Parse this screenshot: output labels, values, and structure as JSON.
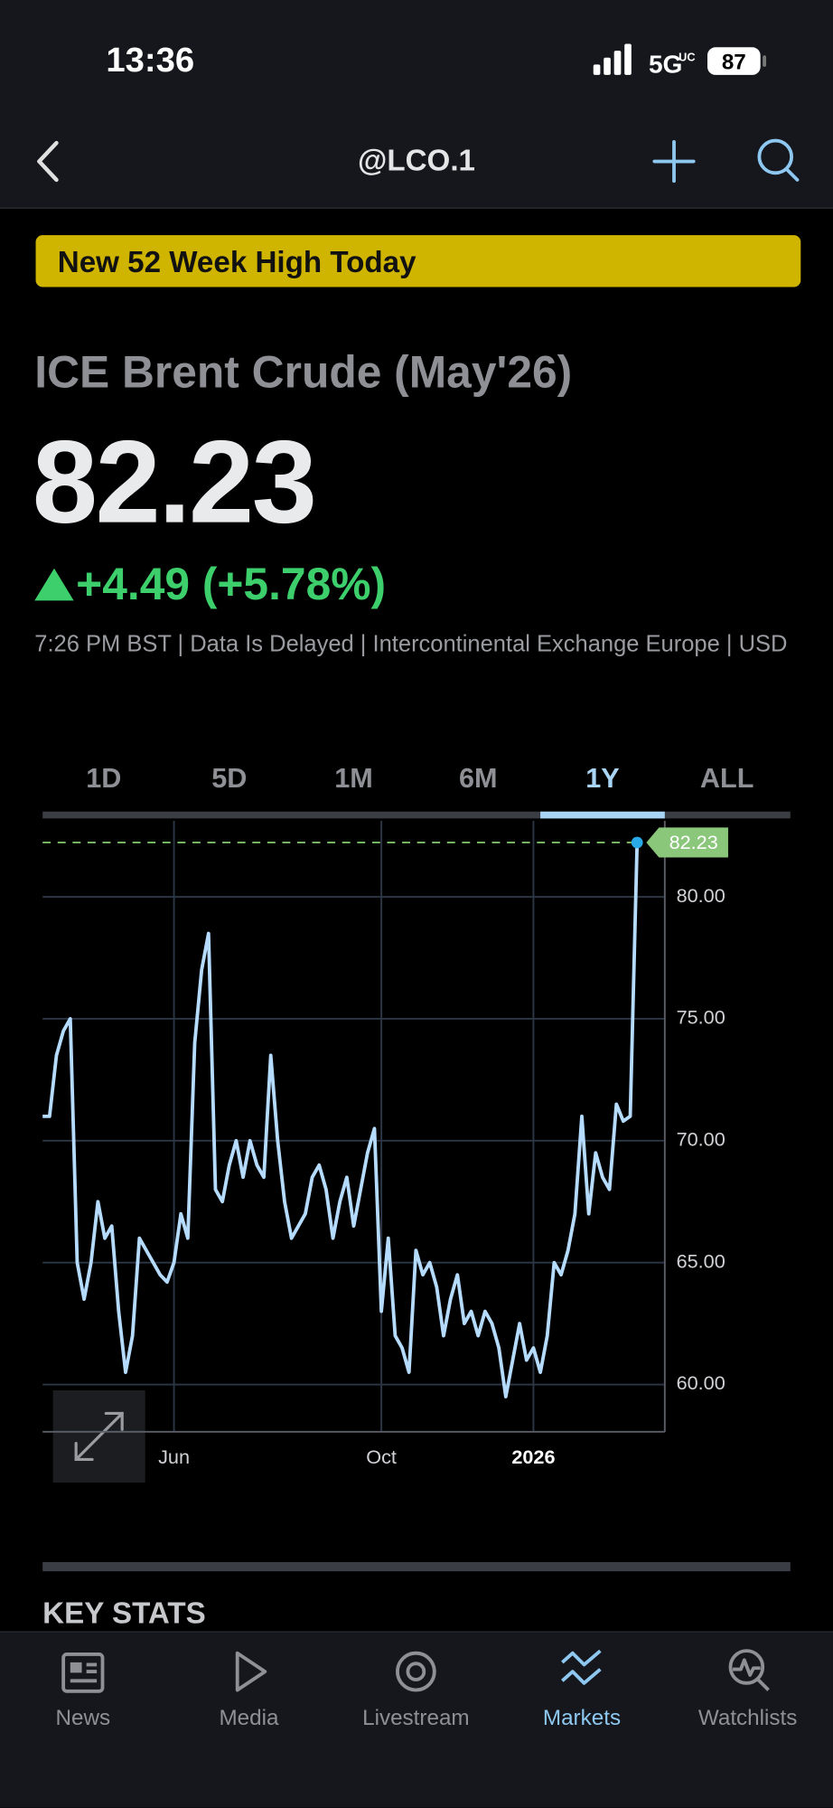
{
  "status_bar": {
    "time": "13:36",
    "network": "5G",
    "network_sub": "UC",
    "battery": "87"
  },
  "header": {
    "title": "@LCO.1"
  },
  "banner": "New 52 Week High Today",
  "quote": {
    "name": "ICE Brent Crude (May'26)",
    "price": "82.23",
    "change": "+4.49 (+5.78%)",
    "info": "7:26 PM BST | Data Is Delayed | Intercontinental Exchange Europe | USD"
  },
  "tabs": {
    "items": [
      "1D",
      "5D",
      "1M",
      "6M",
      "1Y",
      "ALL"
    ],
    "active": "1Y"
  },
  "chart_data": {
    "type": "line",
    "color": "#b5dcff",
    "categories": [
      null,
      null,
      null,
      null,
      null,
      null,
      null,
      null,
      null,
      null,
      null,
      null,
      null,
      null,
      null,
      null,
      null,
      null,
      null,
      "Jun",
      null,
      null,
      null,
      null,
      null,
      null,
      null,
      null,
      null,
      null,
      null,
      null,
      null,
      null,
      null,
      null,
      null,
      null,
      null,
      null,
      null,
      null,
      null,
      null,
      null,
      null,
      null,
      null,
      null,
      "Oct",
      null,
      null,
      null,
      null,
      null,
      null,
      null,
      null,
      null,
      null,
      null,
      null,
      null,
      null,
      null,
      null,
      null,
      null,
      null,
      null,
      null,
      "2026",
      null,
      null,
      null,
      null,
      null,
      null,
      null,
      null,
      null,
      null,
      null,
      null,
      null,
      null,
      null
    ],
    "values": [
      71,
      71,
      73.5,
      74.5,
      75,
      65,
      63.5,
      65,
      67.5,
      66,
      66.5,
      63,
      60.5,
      62,
      66,
      65.5,
      65,
      64.5,
      64.2,
      65,
      67,
      66,
      74,
      77,
      78.5,
      68,
      67.5,
      69,
      70,
      68.5,
      70,
      69,
      68.5,
      73.5,
      70,
      67.5,
      66,
      66.5,
      67,
      68.5,
      69,
      68,
      66,
      67.5,
      68.5,
      66.5,
      68,
      69.5,
      70.5,
      63,
      66,
      62,
      61.5,
      60.5,
      65.5,
      64.5,
      65,
      64,
      62,
      63.5,
      64.5,
      62.5,
      63,
      62,
      63,
      62.5,
      61.5,
      59.5,
      61,
      62.5,
      61,
      61.5,
      60.5,
      62,
      65,
      64.5,
      65.5,
      67,
      71,
      67,
      69.5,
      68.5,
      68,
      71.5,
      70.8,
      71,
      82.23
    ],
    "ylim": [
      58.06,
      83.12
    ],
    "yticks": [
      {
        "value": 60,
        "label": "60.00"
      },
      {
        "value": 65,
        "label": "65.00"
      },
      {
        "value": 70,
        "label": "70.00"
      },
      {
        "value": 75,
        "label": "75.00"
      },
      {
        "value": 80,
        "label": "80.00"
      }
    ],
    "grid": true
  },
  "key_stats": {
    "title": "KEY STATS"
  },
  "nav": {
    "items": [
      "News",
      "Media",
      "Livestream",
      "Markets",
      "Watchlists"
    ],
    "active": "Markets"
  }
}
